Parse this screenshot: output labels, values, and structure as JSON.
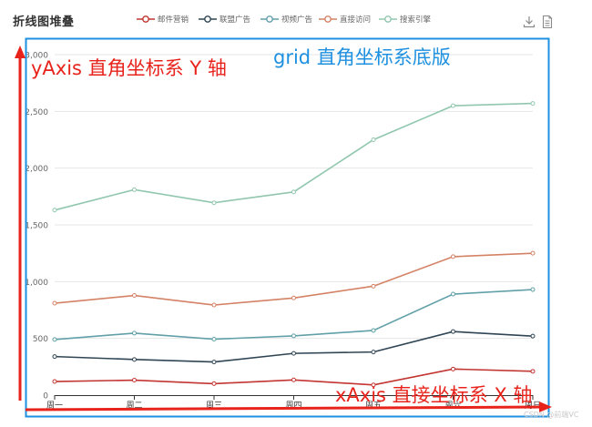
{
  "header": {
    "title": "折线图堆叠"
  },
  "toolbox": {
    "download_icon": "download-icon",
    "data_view_icon": "document-icon"
  },
  "annotations": {
    "yaxis": "yAxis 直角坐标系 Y 轴",
    "grid": "grid 直角坐标系底版",
    "xaxis": "xAxis  直接坐标系 X 轴",
    "watermark": "CSDN @前端VC"
  },
  "chart_data": {
    "type": "line",
    "stacked": true,
    "title": "折线图堆叠",
    "categories": [
      "周一",
      "周二",
      "周三",
      "周四",
      "周五",
      "周六",
      "周日"
    ],
    "ylim": [
      0,
      3000
    ],
    "y_ticks": [
      "0",
      "500",
      "1,000",
      "1,500",
      "2,000",
      "2,500",
      "3,000"
    ],
    "grid": true,
    "legend_position": "top",
    "series": [
      {
        "name": "邮件营销",
        "color": "#c23531",
        "values": [
          120,
          132,
          101,
          134,
          90,
          230,
          210
        ]
      },
      {
        "name": "联盟广告",
        "color": "#2f4554",
        "values": [
          220,
          182,
          191,
          234,
          290,
          330,
          310
        ]
      },
      {
        "name": "视频广告",
        "color": "#61a0a8",
        "values": [
          150,
          232,
          201,
          154,
          190,
          330,
          410
        ]
      },
      {
        "name": "直接访问",
        "color": "#d48265",
        "values": [
          320,
          332,
          301,
          334,
          390,
          330,
          320
        ]
      },
      {
        "name": "搜索引擎",
        "color": "#91c7ae",
        "values": [
          820,
          932,
          901,
          934,
          1290,
          1330,
          1320
        ]
      }
    ]
  }
}
